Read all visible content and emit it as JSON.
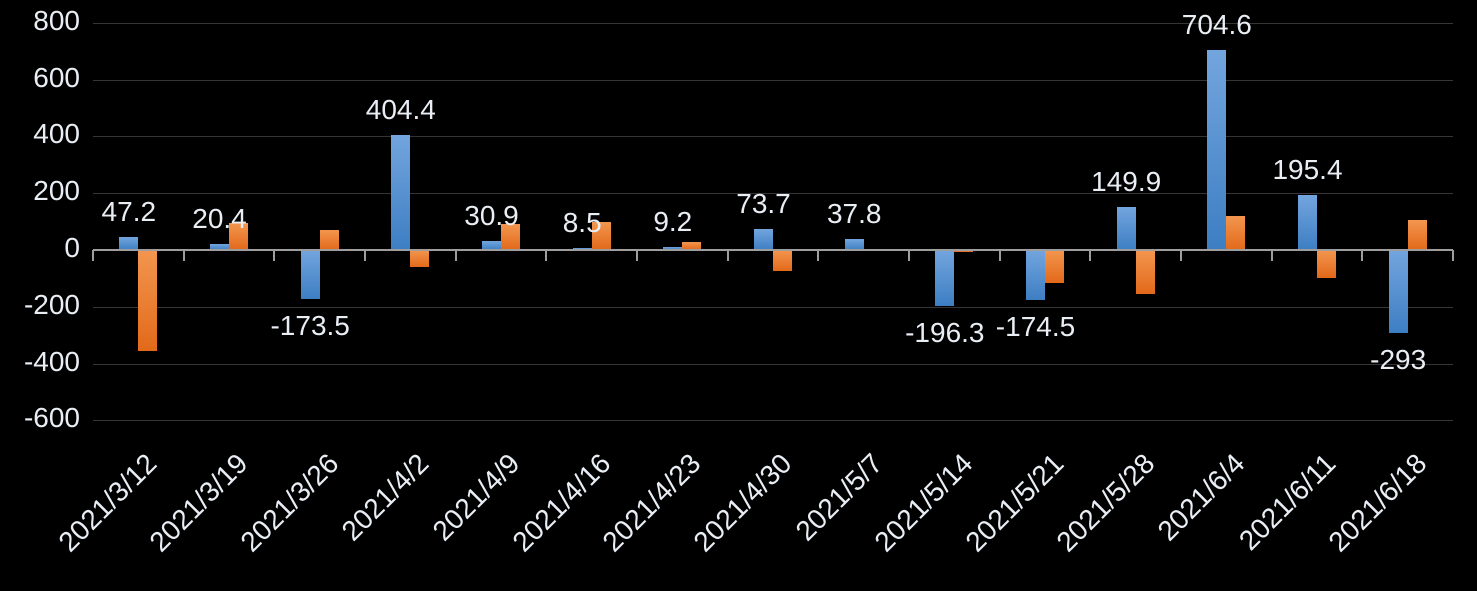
{
  "chart_data": {
    "type": "bar",
    "title": "",
    "legend": "none",
    "grid": true,
    "categories": [
      "2021/3/12",
      "2021/3/19",
      "2021/3/26",
      "2021/4/2",
      "2021/4/9",
      "2021/4/16",
      "2021/4/23",
      "2021/4/30",
      "2021/5/7",
      "2021/5/14",
      "2021/5/21",
      "2021/5/28",
      "2021/6/4",
      "2021/6/11",
      "2021/6/18"
    ],
    "series": [
      {
        "name": "blue-series",
        "values": [
          47.2,
          20.4,
          -173.5,
          404.4,
          30.9,
          8.5,
          9.2,
          73.7,
          37.8,
          -196.3,
          -174.5,
          149.9,
          704.6,
          195.4,
          -293
        ],
        "data_labels": [
          "47.2",
          "20.4",
          "-173.5",
          "404.4",
          "30.9",
          "8.5",
          "9.2",
          "73.7",
          "37.8",
          "-196.3",
          "-174.5",
          "149.9",
          "704.6",
          "195.4",
          "-293"
        ],
        "color_top": "#73a5de",
        "color_bottom": "#3d7ec3"
      },
      {
        "name": "orange-series",
        "values": [
          -355,
          95,
          70,
          -60,
          90,
          100,
          27,
          -75,
          0,
          -8,
          -115,
          -155,
          120,
          -100,
          105
        ],
        "data_labels": [],
        "color_top": "#f3964f",
        "color_bottom": "#e2691a"
      }
    ],
    "y_axis": {
      "ticks": [
        800,
        600,
        400,
        200,
        0,
        -200,
        -400,
        -600
      ],
      "min": -600,
      "max": 800
    },
    "colors": {
      "background": "#000000",
      "text": "#e9eef5",
      "gridline": "#353535",
      "axis": "#9e9e9e"
    }
  }
}
